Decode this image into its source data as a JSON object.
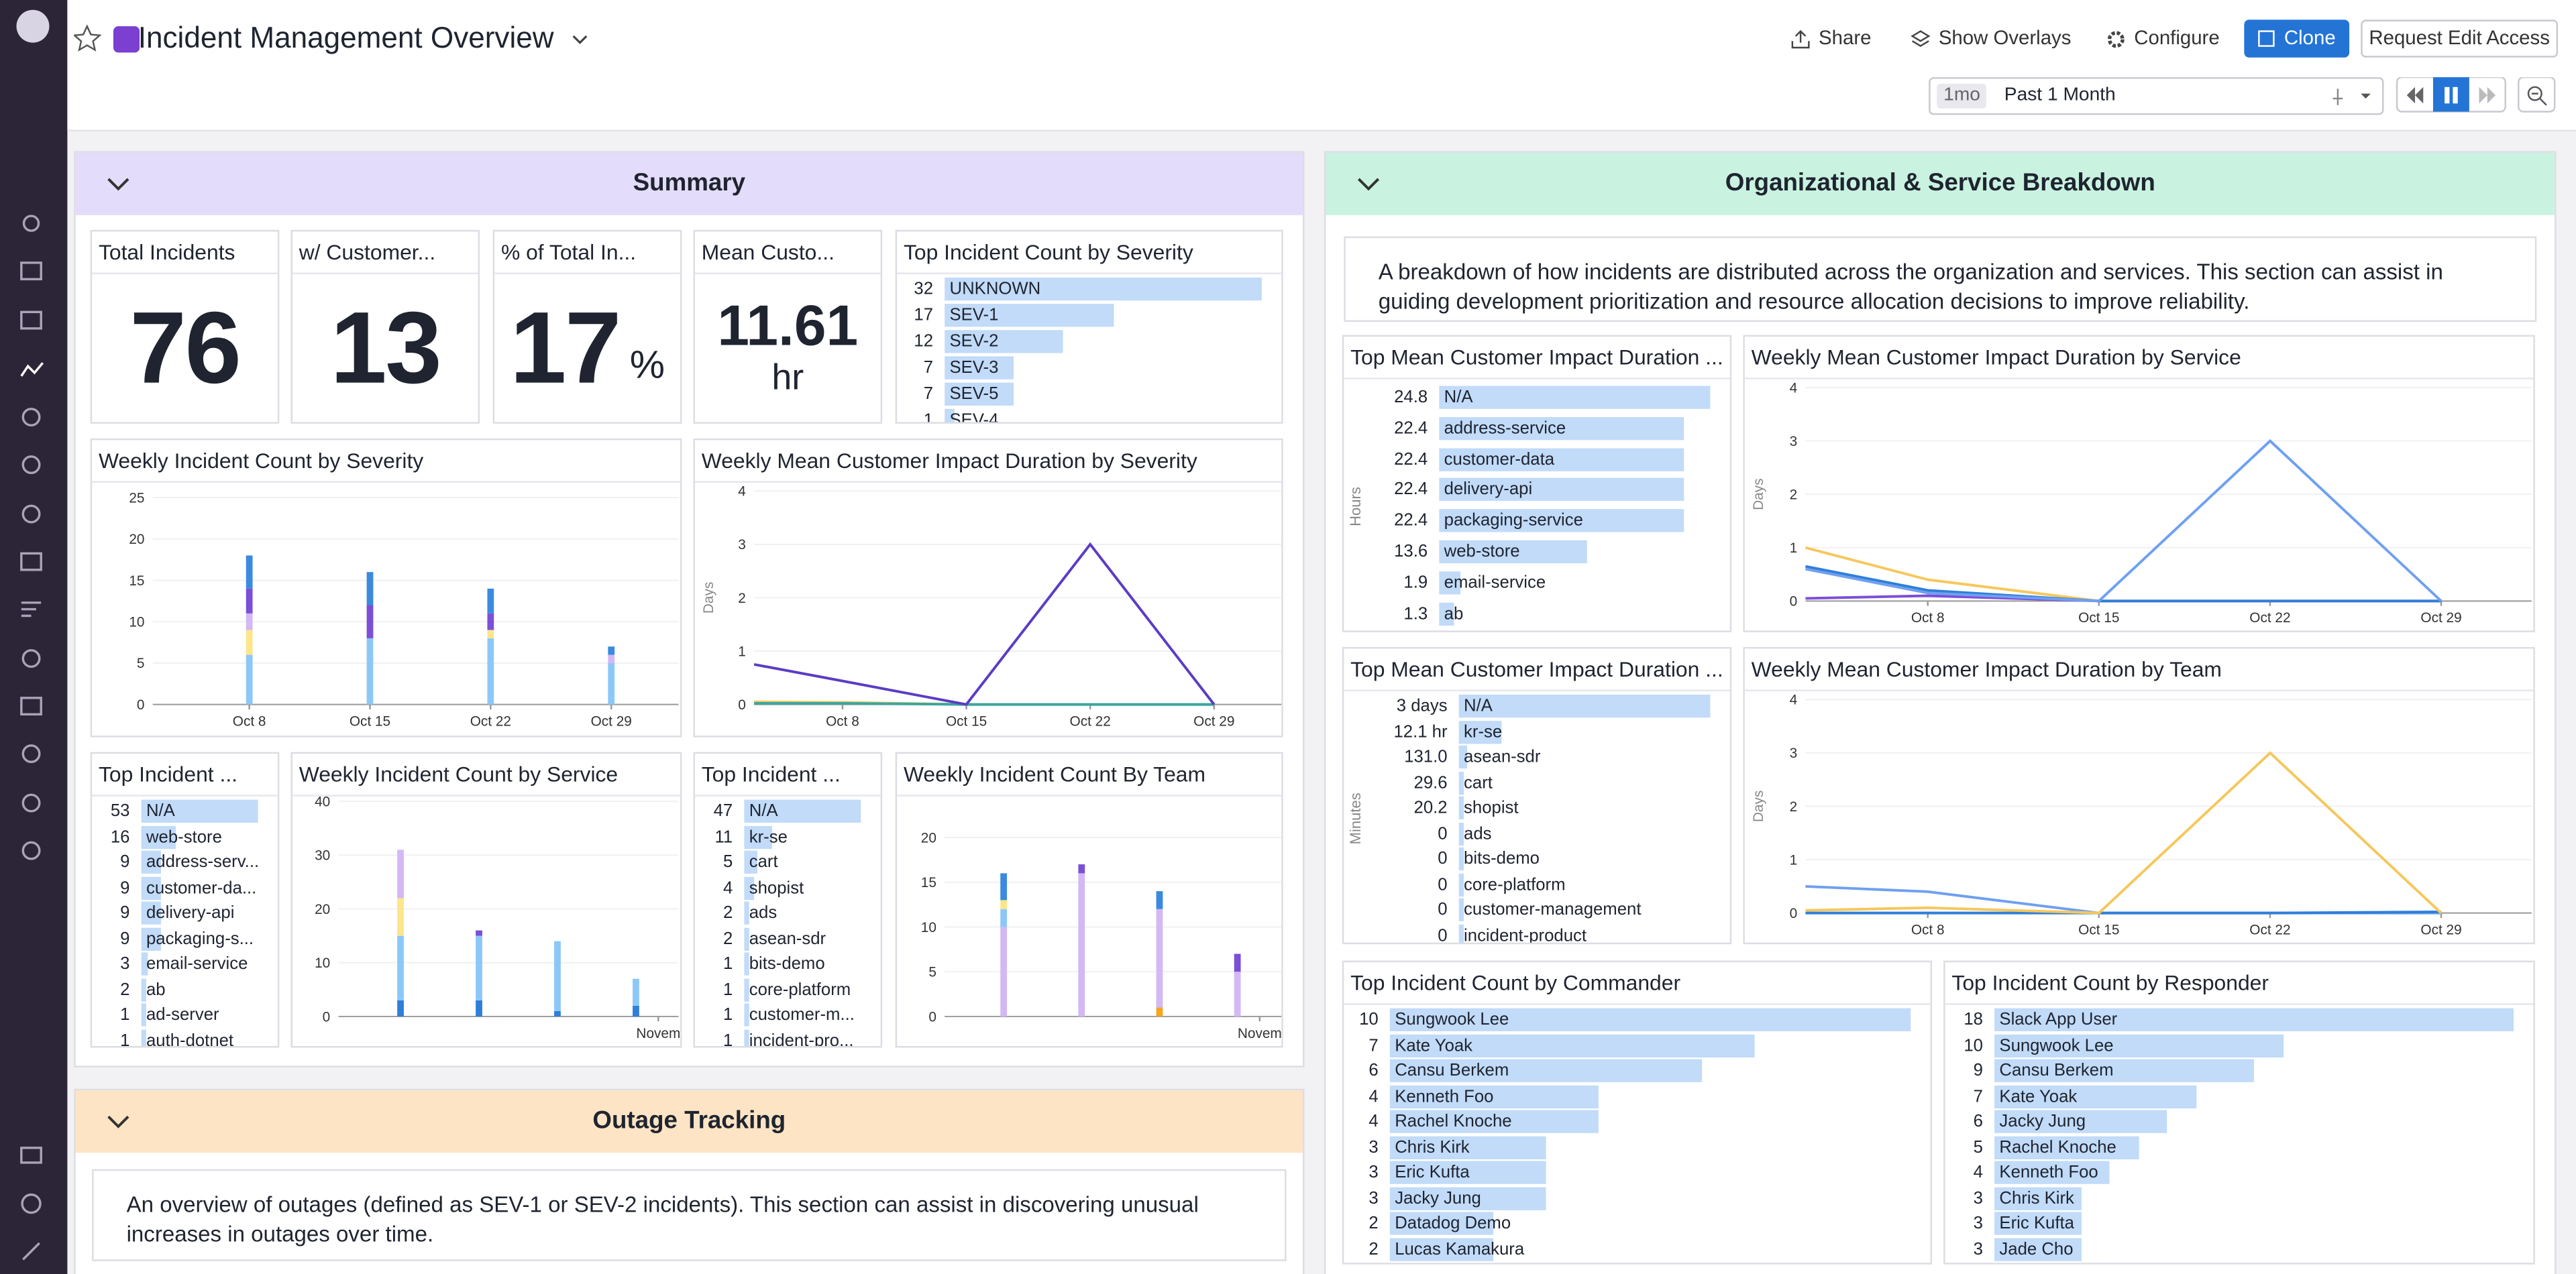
{
  "header": {
    "title": "Incident Management Overview",
    "buttons": [
      "Share",
      "Show Overlays",
      "Configure",
      "Clone",
      "Request Edit Access"
    ],
    "time_badge": "1mo",
    "time_range": "Past 1 Month"
  },
  "sections": [
    {
      "title": "Summary",
      "widgets": [
        {
          "type": "query_value",
          "title": "Total Incidents",
          "value": 76
        },
        {
          "type": "query_value",
          "title": "w/ Customer...",
          "value": 13
        },
        {
          "type": "query_value",
          "title": "% of Total In...",
          "value": 17,
          "unit": "%"
        },
        {
          "type": "query_value",
          "title": "Mean Custo...",
          "value": 11.61,
          "unit": "hr"
        },
        {
          "type": "toplist",
          "title": "Top Incident Count by Severity",
          "items": [
            {
              "label": "UNKNOWN",
              "value": 32
            },
            {
              "label": "SEV-1",
              "value": 17
            },
            {
              "label": "SEV-2",
              "value": 12
            },
            {
              "label": "SEV-3",
              "value": 7
            },
            {
              "label": "SEV-5",
              "value": 7
            },
            {
              "label": "SEV-4",
              "value": 1
            }
          ]
        },
        {
          "type": "bar",
          "title": "Weekly Incident Count by Severity",
          "x": [
            8,
            15,
            22,
            29
          ],
          "xlim": [
            2.4,
            32.9
          ],
          "xticks": [
            {
              "value": 8,
              "label": "Oct 8"
            },
            {
              "value": 15,
              "label": "Oct 15"
            },
            {
              "value": 22,
              "label": "Oct 22"
            },
            {
              "value": 29,
              "label": "Oct 29"
            }
          ],
          "ylim": [
            0,
            25
          ],
          "yticks": [
            0,
            5,
            10,
            15,
            20,
            25
          ],
          "grid": true,
          "series": [
            {
              "color": "#8cc8f7",
              "values": [
                6,
                8,
                8,
                5
              ]
            },
            {
              "color": "#fde68a",
              "values": [
                3,
                0,
                1,
                0
              ]
            },
            {
              "color": "#d3b8f5",
              "values": [
                2,
                0,
                0,
                1
              ]
            },
            {
              "color": "#7b4fd8",
              "values": [
                3,
                4,
                2,
                0
              ]
            },
            {
              "color": "#3b8ae0",
              "values": [
                4,
                4,
                3,
                1
              ]
            }
          ]
        },
        {
          "type": "line",
          "title": "Weekly Mean Customer Impact Duration by Severity",
          "y_label": "Days",
          "x": [
            3,
            8,
            15,
            22,
            29
          ],
          "xlim": [
            3,
            32.9
          ],
          "xticks": [
            {
              "value": 8,
              "label": "Oct 8"
            },
            {
              "value": 15,
              "label": "Oct 15"
            },
            {
              "value": 22,
              "label": "Oct 22"
            },
            {
              "value": 29,
              "label": "Oct 29"
            }
          ],
          "ylim": [
            0,
            4
          ],
          "yticks": [
            0,
            1,
            2,
            3,
            4
          ],
          "grid": true,
          "series": [
            {
              "color": "#f5c85c",
              "values": [
                0.05,
                0.04,
                0,
                0,
                0
              ]
            },
            {
              "color": "#3aa6a0",
              "values": [
                0.02,
                0.02,
                0,
                0,
                0
              ]
            },
            {
              "color": "#5b3cc4",
              "values": [
                0.75,
                0.44,
                0,
                3,
                0
              ]
            }
          ]
        },
        {
          "type": "toplist",
          "title": "Top Incident ...",
          "items": [
            {
              "label": "N/A",
              "value": 53
            },
            {
              "label": "web-store",
              "value": 16
            },
            {
              "label": "address-serv...",
              "value": 9
            },
            {
              "label": "customer-da...",
              "value": 9
            },
            {
              "label": "delivery-api",
              "value": 9
            },
            {
              "label": "packaging-s...",
              "value": 9
            },
            {
              "label": "email-service",
              "value": 3
            },
            {
              "label": "ab",
              "value": 2
            },
            {
              "label": "ad-server",
              "value": 1
            },
            {
              "label": "auth-dotnet",
              "value": 1
            }
          ]
        },
        {
          "type": "bar",
          "title": "Weekly Incident Count by Service",
          "x": [
            8,
            15,
            22,
            29
          ],
          "xlim": [
            2.46,
            32.8
          ],
          "xticks": [
            {
              "value": 31,
              "label": "Novem"
            }
          ],
          "ylim": [
            0,
            40
          ],
          "yticks": [
            0,
            10,
            20,
            30,
            40
          ],
          "grid": true,
          "series": [
            {
              "color": "#2f7fd9",
              "values": [
                3,
                3,
                1,
                2
              ]
            },
            {
              "color": "#8cc8f7",
              "values": [
                12,
                12,
                13,
                5
              ]
            },
            {
              "color": "#fde68a",
              "values": [
                7,
                0,
                0,
                0
              ]
            },
            {
              "color": "#d3b8f5",
              "values": [
                9,
                0,
                0,
                0
              ]
            },
            {
              "color": "#7b4fd8",
              "values": [
                0,
                1,
                0,
                0
              ]
            }
          ]
        },
        {
          "type": "toplist",
          "title": "Top Incident ...",
          "items": [
            {
              "label": "N/A",
              "value": 47
            },
            {
              "label": "kr-se",
              "value": 11
            },
            {
              "label": "cart",
              "value": 5
            },
            {
              "label": "shopist",
              "value": 4
            },
            {
              "label": "ads",
              "value": 2
            },
            {
              "label": "asean-sdr",
              "value": 2
            },
            {
              "label": "bits-demo",
              "value": 1
            },
            {
              "label": "core-platform",
              "value": 1
            },
            {
              "label": "customer-m...",
              "value": 1
            },
            {
              "label": "incident-pro...",
              "value": 1
            }
          ]
        },
        {
          "type": "bar",
          "title": "Weekly Incident Count By Team",
          "x": [
            8,
            15,
            22,
            29
          ],
          "xlim": [
            2.7,
            33.1
          ],
          "xticks": [
            {
              "value": 31,
              "label": "Novem"
            }
          ],
          "ylim": [
            0,
            20
          ],
          "yticks": [
            0,
            5,
            10,
            15,
            20
          ],
          "grid": true,
          "series": [
            {
              "color": "#f5a623",
              "values": [
                0,
                0,
                1,
                0
              ]
            },
            {
              "color": "#d3b8f5",
              "values": [
                10,
                16,
                11,
                5
              ]
            },
            {
              "color": "#8cc8f7",
              "values": [
                2,
                0,
                0,
                0
              ]
            },
            {
              "color": "#fde68a",
              "values": [
                1,
                0,
                0,
                0
              ]
            },
            {
              "color": "#3b8ae0",
              "values": [
                3,
                0,
                2,
                0
              ]
            },
            {
              "color": "#7b4fd8",
              "values": [
                0,
                1,
                0,
                2
              ]
            }
          ]
        }
      ]
    },
    {
      "title": "Organizational & Service Breakdown",
      "description": "A breakdown of how incidents are distributed across the organization and services. This section can assist in guiding development prioritization and resource allocation decisions to improve reliability.",
      "widgets": [
        {
          "type": "toplist",
          "title": "Top Mean Customer Impact Duration ...",
          "y_label": "Hours",
          "items": [
            {
              "label": "N/A",
              "value": 24.8
            },
            {
              "label": "address-service",
              "value": 22.4
            },
            {
              "label": "customer-data",
              "value": 22.4
            },
            {
              "label": "delivery-api",
              "value": 22.4
            },
            {
              "label": "packaging-service",
              "value": 22.4
            },
            {
              "label": "web-store",
              "value": 13.6
            },
            {
              "label": "email-service",
              "value": 1.9
            },
            {
              "label": "ab",
              "value": 1.3
            }
          ]
        },
        {
          "type": "line",
          "title": "Weekly Mean Customer Impact Duration by Service",
          "y_label": "Days",
          "x": [
            3,
            8,
            15,
            22,
            29
          ],
          "xlim": [
            3,
            32.7
          ],
          "xticks": [
            {
              "value": 8,
              "label": "Oct 8"
            },
            {
              "value": 15,
              "label": "Oct 15"
            },
            {
              "value": 22,
              "label": "Oct 22"
            },
            {
              "value": 29,
              "label": "Oct 29"
            }
          ],
          "ylim": [
            0,
            4
          ],
          "yticks": [
            0,
            1,
            2,
            3,
            4
          ],
          "grid": true,
          "series": [
            {
              "color": "#f5c85c",
              "values": [
                1,
                0.4,
                0,
                0,
                0
              ]
            },
            {
              "color": "#7b4fd8",
              "values": [
                0.05,
                0.1,
                0,
                0,
                0
              ]
            },
            {
              "color": "#2f7fd9",
              "values": [
                0.65,
                0.2,
                0,
                0,
                0
              ]
            },
            {
              "color": "#6fa0f0",
              "values": [
                0.6,
                0.15,
                0,
                3,
                0
              ]
            }
          ]
        },
        {
          "type": "toplist",
          "title": "Top Mean Customer Impact Duration ...",
          "y_label": "Minutes",
          "items": [
            {
              "label": "N/A",
              "value": 4320,
              "value_label": "3 days"
            },
            {
              "label": "kr-se",
              "value": 726,
              "value_label": "12.1 hr"
            },
            {
              "label": "asean-sdr",
              "value": 131,
              "value_label": "131.0"
            },
            {
              "label": "cart",
              "value": 29.6
            },
            {
              "label": "shopist",
              "value": 20.2
            },
            {
              "label": "ads",
              "value": 0
            },
            {
              "label": "bits-demo",
              "value": 0
            },
            {
              "label": "core-platform",
              "value": 0
            },
            {
              "label": "customer-management",
              "value": 0
            },
            {
              "label": "incident-product",
              "value": 0
            }
          ]
        },
        {
          "type": "line",
          "title": "Weekly Mean Customer Impact Duration by Team",
          "y_label": "Days",
          "x": [
            3,
            8,
            15,
            22,
            29
          ],
          "xlim": [
            3,
            32.7
          ],
          "xticks": [
            {
              "value": 8,
              "label": "Oct 8"
            },
            {
              "value": 15,
              "label": "Oct 15"
            },
            {
              "value": 22,
              "label": "Oct 22"
            },
            {
              "value": 29,
              "label": "Oct 29"
            }
          ],
          "ylim": [
            0,
            4
          ],
          "yticks": [
            0,
            1,
            2,
            3,
            4
          ],
          "grid": true,
          "series": [
            {
              "color": "#6fa0f0",
              "values": [
                0.5,
                0.4,
                0,
                0,
                0
              ]
            },
            {
              "color": "#2f7fd9",
              "values": [
                0,
                0,
                0,
                0,
                0.02
              ]
            },
            {
              "color": "#f5c85c",
              "values": [
                0.05,
                0.1,
                0,
                3,
                0
              ]
            }
          ]
        },
        {
          "type": "toplist",
          "title": "Top Incident Count by Commander",
          "items": [
            {
              "label": "Sungwook Lee",
              "value": 10
            },
            {
              "label": "Kate Yoak",
              "value": 7
            },
            {
              "label": "Cansu Berkem",
              "value": 6
            },
            {
              "label": "Kenneth Foo",
              "value": 4
            },
            {
              "label": "Rachel Knoche",
              "value": 4
            },
            {
              "label": "Chris Kirk",
              "value": 3
            },
            {
              "label": "Eric Kufta",
              "value": 3
            },
            {
              "label": "Jacky Jung",
              "value": 3
            },
            {
              "label": "Datadog Demo",
              "value": 2
            },
            {
              "label": "Lucas Kamakura",
              "value": 2
            }
          ]
        },
        {
          "type": "toplist",
          "title": "Top Incident Count by Responder",
          "items": [
            {
              "label": "Slack App User",
              "value": 18
            },
            {
              "label": "Sungwook Lee",
              "value": 10
            },
            {
              "label": "Cansu Berkem",
              "value": 9
            },
            {
              "label": "Kate Yoak",
              "value": 7
            },
            {
              "label": "Jacky Jung",
              "value": 6
            },
            {
              "label": "Rachel Knoche",
              "value": 5
            },
            {
              "label": "Kenneth Foo",
              "value": 4
            },
            {
              "label": "Chris Kirk",
              "value": 3
            },
            {
              "label": "Eric Kufta",
              "value": 3
            },
            {
              "label": "Jade Cho",
              "value": 3
            }
          ]
        }
      ]
    },
    {
      "title": "Outage Tracking",
      "description": "An overview of outages (defined as SEV-1 or SEV-2 incidents). This section can assist in discovering unusual increases in outages over time."
    }
  ]
}
